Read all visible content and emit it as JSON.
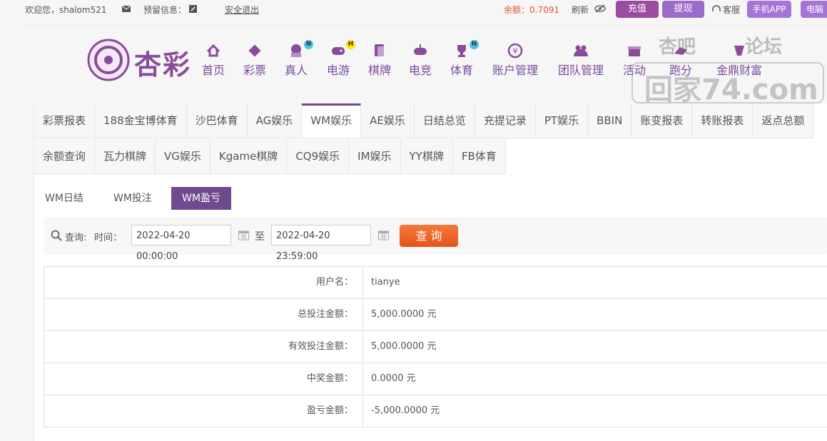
{
  "topbar": {
    "welcome": "欢迎您，shalom521",
    "reserved": "预留信息：",
    "logout": "安全退出",
    "balance": "余额：0.7091",
    "refresh": "刷新",
    "recharge": "充值",
    "withdraw": "提现",
    "service": "客服",
    "app": "手机APP",
    "pc": "电脑"
  },
  "logo": "杏彩",
  "nav": [
    {
      "label": "首页"
    },
    {
      "label": "彩票"
    },
    {
      "label": "真人",
      "badge": "N"
    },
    {
      "label": "电游",
      "badge": "H"
    },
    {
      "label": "棋牌"
    },
    {
      "label": "电竞"
    },
    {
      "label": "体育",
      "badge": "N"
    },
    {
      "label": "账户管理"
    },
    {
      "label": "团队管理"
    },
    {
      "label": "活动"
    },
    {
      "label": "跑分"
    },
    {
      "label": "金鼎财富"
    }
  ],
  "watermark": {
    "top": "杏吧 论坛",
    "bottom": "回家74.com"
  },
  "tabs": [
    [
      "彩票报表",
      "188金宝博体育",
      "沙巴体育",
      "AG娱乐",
      "WM娱乐",
      "AE娱乐",
      "日结总览",
      "充提记录",
      "PT娱乐",
      "BBIN",
      "账变报表",
      "转账报表",
      "返点总额"
    ],
    [
      "余额查询",
      "瓦力棋牌",
      "VG娱乐",
      "Kgame棋牌",
      "CQ9娱乐",
      "IM娱乐",
      "YY棋牌",
      "FB体育"
    ]
  ],
  "active_tab": "WM娱乐",
  "subtabs": [
    "WM日结",
    "WM投注",
    "WM盈亏"
  ],
  "active_subtab": "WM盈亏",
  "search": {
    "query": "查询:",
    "time": "时间：",
    "from": "2022-04-20 00:00:00",
    "to_label": "至",
    "to": "2022-04-20 23:59:00",
    "button": "查 询"
  },
  "table": {
    "rows": [
      [
        "用户名：",
        "tianye"
      ],
      [
        "总投注金额：",
        "5,000.0000 元"
      ],
      [
        "有效投注金额：",
        "5,000.0000 元"
      ],
      [
        "中奖金额：",
        "0.0000 元"
      ],
      [
        "盈亏金额：",
        "-5,000.0000 元"
      ]
    ]
  }
}
